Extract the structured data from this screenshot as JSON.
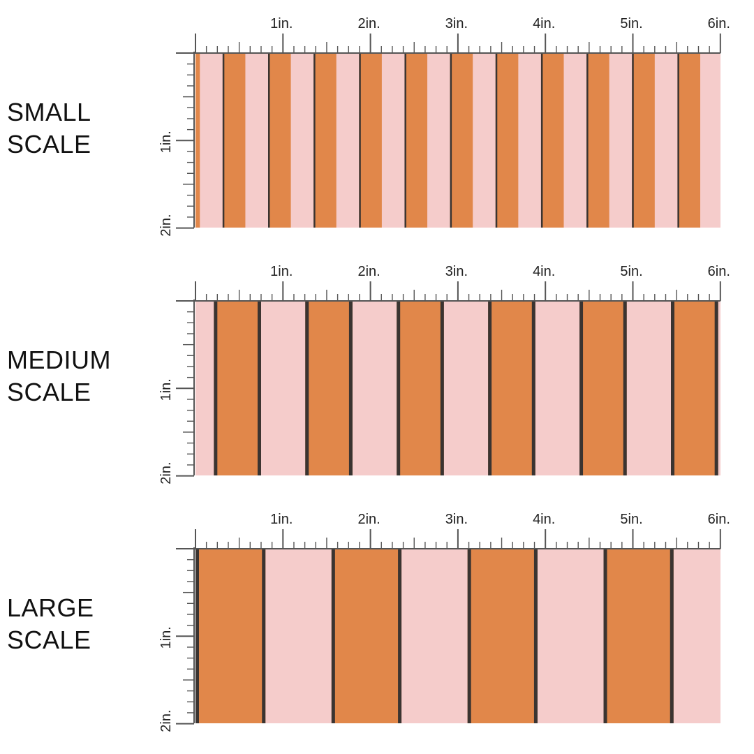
{
  "colors": {
    "background": "#f5cccb",
    "stripe": "#e1874a",
    "stripe_edge": "#3a3431",
    "ruler": "#555555",
    "text": "#222222"
  },
  "ruler_labels": {
    "horizontal": [
      "1in.",
      "2in.",
      "3in.",
      "4in.",
      "5in.",
      "6in."
    ],
    "vertical": [
      "1in.",
      "2in."
    ]
  },
  "sections": [
    {
      "id": "small",
      "label_line1": "SMALL",
      "label_line2": "SCALE",
      "pattern": "orange stripes on pink with dark edge lines",
      "stripe_period_in": 0.52,
      "stripe_width_in": 0.26,
      "stripe_phase_in": 0.31,
      "edge_side": "left"
    },
    {
      "id": "medium",
      "label_line1": "MEDIUM",
      "label_line2": "SCALE",
      "pattern": "orange stripes on pink with dark edge lines",
      "stripe_period_in": 1.045,
      "stripe_width_in": 0.54,
      "stripe_phase_in": 0.21,
      "edge_side": "both"
    },
    {
      "id": "large",
      "label_line1": "LARGE",
      "label_line2": "SCALE",
      "pattern": "orange stripes on pink with dark edge lines",
      "stripe_period_in": 1.555,
      "stripe_width_in": 0.8,
      "stripe_phase_in": 0.0,
      "edge_side": "both"
    }
  ]
}
